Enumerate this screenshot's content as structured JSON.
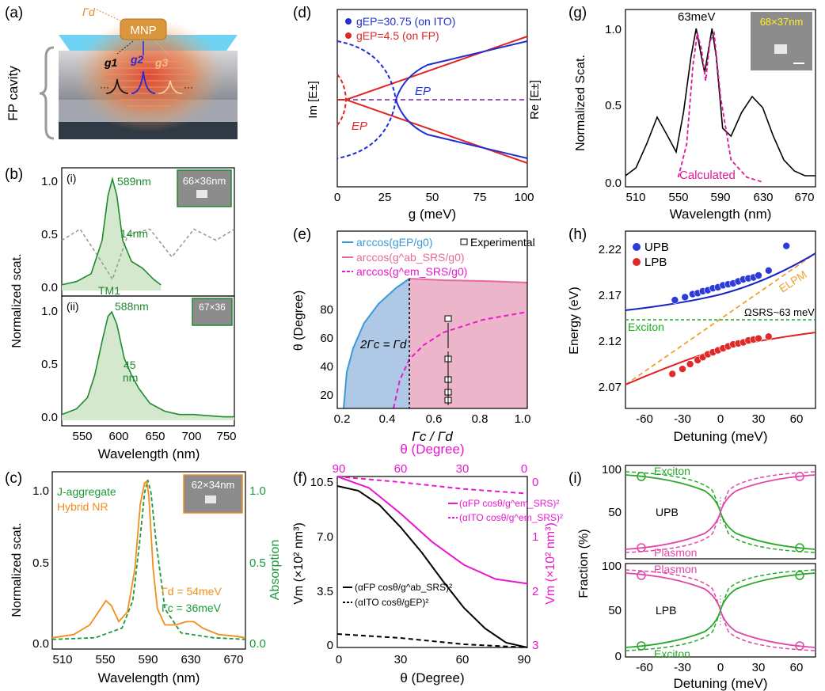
{
  "panels": {
    "a": {
      "letter": "(a)",
      "mnp": "MNP",
      "gamma_d": "Γd",
      "g1": "g1",
      "g2": "g2",
      "g3": "g3",
      "side_label": "FP cavity"
    },
    "b": {
      "letter": "(b)",
      "ylabel": "Normalized scat.",
      "xlabel": "Wavelength (nm)",
      "xticks": [
        "550",
        "600",
        "650",
        "700",
        "750"
      ],
      "i": {
        "tag": "(i)",
        "peak": "589nm",
        "width": "14nm",
        "mode": "TM1",
        "inset": "66×36nm",
        "yticks": [
          "0.0",
          "0.5",
          "1.0"
        ],
        "chart_data": {
          "type": "line",
          "xlim": [
            520,
            755
          ],
          "ylim": [
            -0.05,
            1.1
          ],
          "series": [
            {
              "x": [
                520,
                540,
                560,
                575,
                583,
                589,
                595,
                603,
                615,
                630,
                645,
                655
              ],
              "y": [
                0.05,
                0.08,
                0.15,
                0.45,
                0.85,
                1.0,
                0.85,
                0.45,
                0.26,
                0.2,
                0.1,
                0.05
              ]
            },
            {
              "x": [
                520,
                545,
                570,
                589,
                610,
                640,
                670,
                700,
                730,
                755
              ],
              "y": [
                0.45,
                0.55,
                0.3,
                0.1,
                0.5,
                0.55,
                0.3,
                0.55,
                0.45,
                0.55
              ]
            }
          ]
        }
      },
      "ii": {
        "tag": "(ii)",
        "peak": "588nm",
        "width": "45",
        "width_unit": "nm",
        "inset": "67×36",
        "yticks": [
          "0.0",
          "0.5",
          "1.0"
        ],
        "chart_data": {
          "type": "line",
          "xlim": [
            520,
            755
          ],
          "ylim": [
            -0.05,
            1.1
          ],
          "series": [
            {
              "x": [
                520,
                540,
                555,
                565,
                575,
                583,
                588,
                595,
                605,
                615,
                625,
                640,
                660,
                680,
                700,
                720,
                740,
                755
              ],
              "y": [
                0.05,
                0.1,
                0.2,
                0.4,
                0.7,
                0.92,
                0.96,
                0.85,
                0.55,
                0.4,
                0.28,
                0.15,
                0.08,
                0.05,
                0.05,
                0.04,
                0.03,
                0.03
              ]
            }
          ]
        }
      }
    },
    "c": {
      "letter": "(c)",
      "ylabel": "Normalized scat.",
      "ylabel_right": "Absorption",
      "xlabel": "Wavelength (nm)",
      "legend": [
        "J-aggregate",
        "Hybrid NR"
      ],
      "inset": "62×34nm",
      "gamma_d": "Γd = 54meV",
      "gamma_c": "Γc = 36meV",
      "xticks": [
        "510",
        "550",
        "590",
        "630",
        "670"
      ],
      "yticks": [
        "0.0",
        "0.5",
        "1.0"
      ],
      "yticks_right": [
        "0.0",
        "0.5",
        "1.0"
      ],
      "colors": {
        "hybrid": "#f28e1c",
        "jagg": "#1a9a3a"
      },
      "chart_data": {
        "type": "line",
        "xlim": [
          500,
          680
        ],
        "ylim": [
          -0.05,
          1.05
        ],
        "series": [
          {
            "name": "Hybrid NR",
            "x": [
              500,
              520,
              535,
              545,
              550,
              555,
              562,
              570,
              577,
              582,
              586,
              588,
              590,
              594,
              598,
              605,
              615,
              625,
              632,
              640,
              655,
              670,
              680
            ],
            "y": [
              0.02,
              0.04,
              0.1,
              0.2,
              0.25,
              0.22,
              0.12,
              0.18,
              0.45,
              0.85,
              0.98,
              0.99,
              0.9,
              0.45,
              0.2,
              0.1,
              0.1,
              0.12,
              0.12,
              0.08,
              0.04,
              0.03,
              0.02
            ]
          },
          {
            "name": "J-aggregate",
            "x": [
              500,
              540,
              565,
              575,
              582,
              586,
              589,
              592,
              597,
              605,
              620,
              650,
              680
            ],
            "y": [
              0.01,
              0.02,
              0.08,
              0.25,
              0.65,
              0.92,
              1.0,
              0.92,
              0.6,
              0.2,
              0.05,
              0.02,
              0.01
            ]
          }
        ]
      }
    },
    "d": {
      "letter": "(d)",
      "xlabel": "g (meV)",
      "ylabel_left": "Im [E±]",
      "ylabel_right": "Re [E±]",
      "legend": [
        "gEP=30.75 (on ITO)",
        "gEP=4.5 (on FP)"
      ],
      "ep_labels": [
        "EP",
        "EP"
      ],
      "xticks": [
        "0",
        "25",
        "50",
        "75",
        "100"
      ],
      "colors": {
        "ito": "#1f2fd0",
        "fp": "#e02626",
        "purple": "#7a1fa0"
      },
      "chart_data": {
        "type": "line",
        "xlim": [
          0,
          100
        ],
        "ep_points": [
          30.75,
          4.5
        ]
      }
    },
    "e": {
      "letter": "(e)",
      "ylabel": "θ (Degree)",
      "xlabel": "Γc / Γd",
      "legend": [
        "arccos(gEP/g0)",
        "arccos(g^ab_SRS/g0)",
        "arccos(g^em_SRS/g0)",
        "Experimental"
      ],
      "annotation": "2Γc = Γd",
      "xticks": [
        "0.2",
        "0.4",
        "0.6",
        "0.8",
        "1.0"
      ],
      "yticks": [
        "20",
        "40",
        "60",
        "80"
      ],
      "chart_data": {
        "type": "area",
        "xlim": [
          0.2,
          1.0
        ],
        "ylim": [
          0,
          90
        ],
        "series": [
          {
            "name": "arccos(gEP/g0)",
            "x": [
              0.23,
              0.25,
              0.28,
              0.32,
              0.36,
              0.4,
              0.45,
              0.5
            ],
            "y": [
              0,
              18,
              30,
              42,
              52,
              59,
              67,
              72
            ]
          },
          {
            "name": "arccos(g^ab_SRS/g0)",
            "x": [
              0.5,
              0.6,
              0.7,
              0.8,
              0.9,
              1.0
            ],
            "y": [
              72,
              71.5,
              71,
              70.8,
              70.5,
              70
            ]
          },
          {
            "name": "arccos(g^em_SRS/g0)",
            "x": [
              0.45,
              0.48,
              0.52,
              0.56,
              0.6,
              0.7,
              0.8,
              0.9,
              1.0
            ],
            "y": [
              0,
              12,
              24,
              32,
              37,
              44,
              48,
              51,
              54
            ]
          },
          {
            "name": "Experimental",
            "x": [
              0.67,
              0.67,
              0.67,
              0.67,
              0.67
            ],
            "y": [
              50,
              29,
              17,
              10,
              6
            ]
          }
        ]
      }
    },
    "f": {
      "letter": "(f)",
      "xlabel": "θ (Degree)",
      "xlabel_top": "θ (Degree)",
      "ylabel_left": "Vm (×10² nm³)",
      "ylabel_right": "Vm (×10² nm³)",
      "legend_black": [
        "(αFP cosθ/g^ab_SRS)²",
        "(αITO cosθ/gEP)²"
      ],
      "legend_magenta": [
        "(αFP cosθ/g^em_SRS)²",
        "(αITO cosθ/g^em_SRS)²"
      ],
      "xticks": [
        "0",
        "30",
        "60",
        "90"
      ],
      "xticks_top": [
        "90",
        "60",
        "30",
        "0"
      ],
      "yticks": [
        "0",
        "3.5",
        "7.0",
        "10.5"
      ],
      "yticks_right": [
        "0",
        "1",
        "2",
        "3"
      ],
      "chart_data": {
        "type": "line",
        "xlim": [
          0,
          90
        ],
        "ylim": [
          0,
          10.8
        ],
        "series": [
          {
            "name": "(αFP cosθ/g^ab_SRS)²",
            "x": [
              0,
              10,
              20,
              30,
              40,
              50,
              60,
              70,
              80,
              90
            ],
            "y": [
              10.2,
              9.9,
              9.0,
              7.6,
              6.0,
              4.2,
              2.5,
              1.2,
              0.3,
              0
            ]
          },
          {
            "name": "(αITO cosθ/gEP)²",
            "x": [
              0,
              30,
              60,
              90
            ],
            "y": [
              0.85,
              0.6,
              0.2,
              0
            ]
          },
          {
            "name": "(αFP cosθ/g^em_SRS)²",
            "x": [
              90,
              75,
              60,
              45,
              30,
              15,
              0
            ],
            "y": [
              0,
              0.2,
              0.65,
              1.15,
              1.55,
              1.8,
              1.88
            ]
          },
          {
            "name": "(αITO cosθ/g^em_SRS)²",
            "x": [
              90,
              60,
              30,
              0
            ],
            "y": [
              0,
              0.1,
              0.22,
              0.3
            ]
          }
        ]
      }
    },
    "g": {
      "letter": "(g)",
      "ylabel": "Normalized Scat.",
      "xlabel": "Wavelength (nm)",
      "peak_label": "63meV",
      "inset": "68×37nm",
      "calc_label": "Calculated",
      "xticks": [
        "510",
        "550",
        "590",
        "630",
        "670"
      ],
      "yticks": [
        "0.0",
        "0.5",
        "1.0"
      ],
      "chart_data": {
        "type": "line",
        "xlim": [
          500,
          680
        ],
        "ylim": [
          -0.02,
          1.1
        ],
        "series": [
          {
            "x": [
              500,
              510,
              520,
              530,
              540,
              548,
              555,
              562,
              567,
              572,
              575,
              578,
              582,
              586,
              592,
              600,
              610,
              620,
              630,
              640,
              650,
              660,
              670,
              680
            ],
            "y": [
              0.05,
              0.1,
              0.25,
              0.42,
              0.3,
              0.2,
              0.45,
              0.8,
              0.98,
              0.8,
              0.7,
              0.82,
              0.98,
              0.8,
              0.35,
              0.3,
              0.45,
              0.55,
              0.48,
              0.3,
              0.15,
              0.08,
              0.05,
              0.05
            ]
          },
          {
            "name": "Calculated",
            "x": [
              550,
              558,
              564,
              568,
              572,
              576,
              580,
              584,
              590,
              600,
              615,
              630
            ],
            "y": [
              0.04,
              0.25,
              0.75,
              0.95,
              0.85,
              0.65,
              0.9,
              0.95,
              0.55,
              0.15,
              0.04,
              0.01
            ]
          }
        ]
      }
    },
    "h": {
      "letter": "(h)",
      "ylabel": "Energy (eV)",
      "xlabel": "Detuning (meV)",
      "legend": [
        "UPB",
        "LPB"
      ],
      "labels": {
        "elpm": "ELPM",
        "exciton": "Exciton",
        "omega": "ΩSRS~63 meV"
      },
      "xticks": [
        "-60",
        "-30",
        "0",
        "30",
        "60"
      ],
      "yticks": [
        "2.07",
        "2.12",
        "2.17",
        "2.22"
      ],
      "chart_data": {
        "type": "scatter",
        "xlim": [
          -75,
          75
        ],
        "ylim": [
          2.055,
          2.235
        ],
        "exciton_energy": 2.145,
        "series": [
          {
            "name": "UPB",
            "x": [
              -36,
              -28,
              -22,
              -18,
              -14,
              -10,
              -6,
              -2,
              2,
              6,
              10,
              14,
              18,
              22,
              26,
              30,
              38,
              52
            ],
            "y": [
              2.165,
              2.168,
              2.171,
              2.172,
              2.174,
              2.175,
              2.177,
              2.178,
              2.18,
              2.181,
              2.182,
              2.184,
              2.186,
              2.187,
              2.188,
              2.19,
              2.195,
              2.22
            ]
          },
          {
            "name": "LPB",
            "x": [
              -38,
              -30,
              -24,
              -18,
              -14,
              -10,
              -6,
              -2,
              2,
              6,
              10,
              14,
              18,
              22,
              26,
              30,
              38
            ],
            "y": [
              2.09,
              2.095,
              2.1,
              2.104,
              2.107,
              2.11,
              2.112,
              2.114,
              2.116,
              2.118,
              2.12,
              2.121,
              2.122,
              2.124,
              2.125,
              2.126,
              2.128
            ]
          }
        ]
      }
    },
    "i": {
      "letter": "(i)",
      "ylabel": "Fraction (%)",
      "xlabel": "Detuning (meV)",
      "top": {
        "labels": [
          "Exciton",
          "UPB",
          "Plasmon"
        ]
      },
      "bottom": {
        "labels": [
          "Plasmon",
          "LPB",
          "Exciton"
        ]
      },
      "xticks": [
        "-60",
        "-30",
        "0",
        "30",
        "60"
      ],
      "yticks": [
        "0",
        "50",
        "100"
      ],
      "chart_data": {
        "type": "line",
        "xlim": [
          -75,
          75
        ],
        "ylim": [
          0,
          100
        ],
        "series": [
          {
            "name": "Exciton",
            "x": [
              -75,
              -60,
              -30,
              0,
              30,
              60,
              75
            ],
            "y": [
              90,
              88,
              75,
              50,
              25,
              12,
              10
            ]
          },
          {
            "name": "Plasmon",
            "x": [
              -75,
              -60,
              -30,
              0,
              30,
              60,
              75
            ],
            "y": [
              10,
              12,
              25,
              50,
              75,
              88,
              90
            ]
          }
        ]
      }
    }
  }
}
